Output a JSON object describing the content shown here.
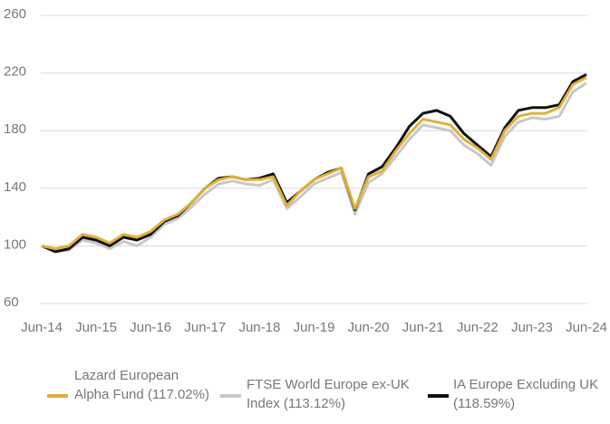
{
  "chart_data": {
    "type": "line",
    "categories": [
      "Jun-14",
      null,
      null,
      null,
      "Jun-15",
      null,
      null,
      null,
      "Jun-16",
      null,
      null,
      null,
      "Jun-17",
      null,
      null,
      null,
      "Jun-18",
      null,
      null,
      null,
      "Jun-19",
      null,
      null,
      null,
      "Jun-20",
      null,
      null,
      null,
      "Jun-21",
      null,
      null,
      null,
      "Jun-22",
      null,
      null,
      null,
      "Jun-23",
      null,
      null,
      null,
      "Jun-24"
    ],
    "series": [
      {
        "name": "FTSE World Europe ex-UK Index (113.12%)",
        "color": "#c8c8c8",
        "values": [
          100,
          96,
          97,
          104,
          102,
          98,
          103,
          100,
          106,
          115,
          119,
          127,
          136,
          143,
          145,
          143,
          142,
          146,
          126,
          134,
          143,
          147,
          151,
          122,
          144,
          150,
          162,
          174,
          184,
          182,
          180,
          170,
          164,
          156,
          176,
          186,
          189,
          188,
          190,
          207,
          213
        ]
      },
      {
        "name": "IA Europe Excluding UK (118.59%)",
        "color": "#111111",
        "values": [
          100,
          96,
          98,
          106,
          104,
          100,
          106,
          104,
          108,
          117,
          121,
          130,
          140,
          147,
          148,
          146,
          147,
          150,
          130,
          138,
          146,
          151,
          154,
          125,
          150,
          155,
          168,
          183,
          192,
          194,
          190,
          178,
          170,
          162,
          182,
          194,
          196,
          196,
          198,
          214,
          219
        ]
      },
      {
        "name": "Lazard European Alpha Fund (117.02%)",
        "color": "#e0b03c",
        "values": [
          100,
          98,
          100,
          108,
          106,
          102,
          108,
          106,
          110,
          118,
          122,
          130,
          140,
          146,
          148,
          146,
          146,
          148,
          128,
          138,
          146,
          150,
          154,
          126,
          148,
          152,
          166,
          178,
          188,
          186,
          184,
          174,
          168,
          160,
          180,
          190,
          192,
          192,
          196,
          212,
          217
        ]
      }
    ],
    "legend_order": [
      2,
      0,
      1
    ],
    "ylim": [
      60,
      260
    ],
    "yticks": [
      60,
      100,
      140,
      180,
      220,
      260
    ],
    "grid": true
  }
}
